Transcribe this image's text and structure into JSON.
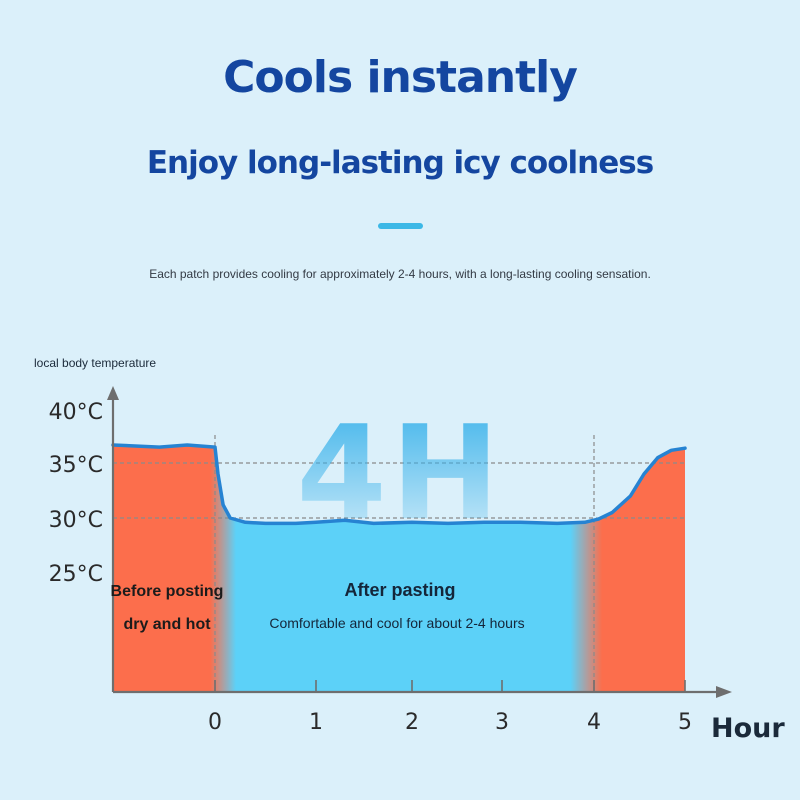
{
  "header": {
    "title": "Cools instantly",
    "subtitle": "Enjoy long-lasting icy coolness",
    "description": "Each patch provides cooling for approximately 2-4 hours, with a long-lasting cooling sensation."
  },
  "colors": {
    "title": "#1446a0",
    "hot_region": "#fc6e4c",
    "cool_region": "#5cd1f8",
    "curve": "#2683d2",
    "accent": "#3cb8e6"
  },
  "chart_data": {
    "type": "area",
    "ylabel": "local body temperature",
    "xlabel": "Hour",
    "x_ticks": [
      "0",
      "1",
      "2",
      "3",
      "4",
      "5"
    ],
    "y_ticks": [
      "40°C",
      "35°C",
      "30°C",
      "25°C"
    ],
    "y_tick_values": [
      40,
      35,
      30,
      25
    ],
    "xlim": [
      -1.1,
      5
    ],
    "ylim": [
      25,
      40
    ],
    "grid": "dashed lines at 35°C and 30°C; dashed verticals at hour 0 and 4",
    "big_label": "4H",
    "series": [
      {
        "x": [
          -1.1,
          -0.6,
          -0.3,
          0,
          0.03,
          0.08,
          0.15,
          0.3,
          0.5,
          0.8,
          1.0,
          1.3,
          1.6,
          2.0,
          2.4,
          2.8,
          3.2,
          3.6,
          3.9,
          4.05,
          4.2,
          4.4,
          4.55,
          4.7,
          4.85,
          5.0
        ],
        "y": [
          36.7,
          36.5,
          36.7,
          36.5,
          34.0,
          31.2,
          30.0,
          29.6,
          29.5,
          29.5,
          29.6,
          29.8,
          29.5,
          29.6,
          29.5,
          29.6,
          29.6,
          29.5,
          29.6,
          29.9,
          30.5,
          32.0,
          34.0,
          35.5,
          36.2,
          36.4
        ]
      }
    ],
    "regions": [
      {
        "x_start": -1.1,
        "x_end": 0,
        "label": "Before posting",
        "sublabel": "dry and hot",
        "state": "hot"
      },
      {
        "x_start": 0,
        "x_end": 4,
        "label": "After pasting",
        "sublabel": "Comfortable and cool for about 2-4 hours",
        "state": "cool"
      },
      {
        "x_start": 4,
        "x_end": 5,
        "label": "",
        "sublabel": "",
        "state": "hot"
      }
    ]
  }
}
